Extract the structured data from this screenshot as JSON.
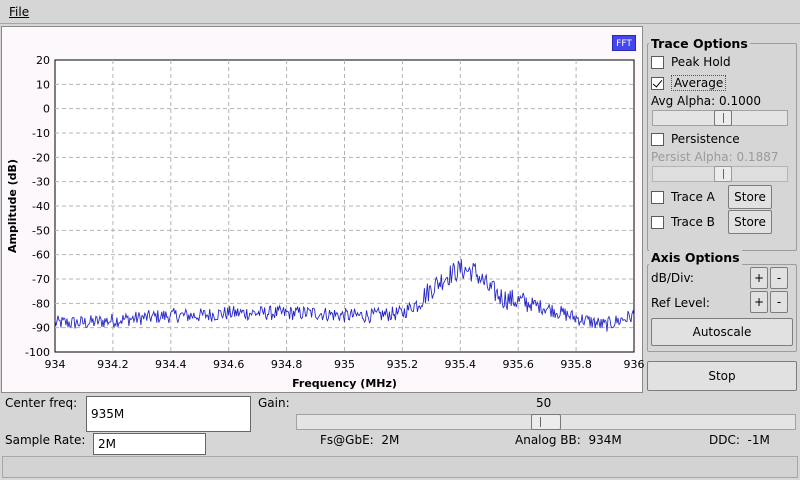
{
  "menu": {
    "file_label": "File"
  },
  "plot": {
    "badge": "FFT"
  },
  "chart_data": {
    "type": "line",
    "title": "",
    "xlabel": "Frequency (MHz)",
    "ylabel": "Amplitude (dB)",
    "xlim": [
      934,
      936
    ],
    "ylim": [
      -100,
      20
    ],
    "x_ticks": [
      "934",
      "934.2",
      "934.4",
      "934.6",
      "934.8",
      "935",
      "935.2",
      "935.4",
      "935.6",
      "935.8",
      "936"
    ],
    "y_ticks": [
      "20",
      "10",
      "0",
      "-10",
      "-20",
      "-30",
      "-40",
      "-50",
      "-60",
      "-70",
      "-80",
      "-90",
      "-100"
    ],
    "grid": true,
    "series_color": "#2727c8",
    "series": [
      {
        "x": [
          934.0,
          934.1,
          934.2,
          934.3,
          934.4,
          934.5,
          934.6,
          934.7,
          934.8,
          934.9,
          935.0,
          935.1,
          935.2,
          935.25,
          935.3,
          935.35,
          935.4,
          935.45,
          935.5,
          935.55,
          935.6,
          935.7,
          935.8,
          935.9,
          936.0
        ],
        "values": [
          -88,
          -88,
          -87,
          -86,
          -85,
          -85,
          -84,
          -84,
          -84,
          -84,
          -85,
          -85,
          -84,
          -80,
          -74,
          -69,
          -66,
          -67,
          -74,
          -78,
          -79,
          -82,
          -86,
          -89,
          -85
        ]
      }
    ]
  },
  "trace_options": {
    "title": "Trace Options",
    "peak_hold": {
      "label": "Peak Hold",
      "checked": false
    },
    "average": {
      "label": "Average",
      "checked": true
    },
    "avg_alpha_label": "Avg Alpha:",
    "avg_alpha_value": "0.1000",
    "avg_alpha_slider": 0.53,
    "persistence": {
      "label": "Persistence",
      "checked": false
    },
    "persist_alpha_label": "Persist Alpha:",
    "persist_alpha_value": "0.1887",
    "persist_alpha_slider": 0.53,
    "trace_a": {
      "label": "Trace A",
      "checked": false,
      "store_label": "Store"
    },
    "trace_b": {
      "label": "Trace B",
      "checked": false,
      "store_label": "Store"
    }
  },
  "axis_options": {
    "title": "Axis Options",
    "db_div_label": "dB/Div:",
    "ref_level_label": "Ref Level:",
    "plus": "+",
    "minus": "-",
    "autoscale_label": "Autoscale"
  },
  "stop_label": "Stop",
  "controls": {
    "center_freq_label": "Center freq:",
    "center_freq_value": "935M",
    "gain_label": "Gain:",
    "gain_value": "50",
    "gain_slider": 0.5,
    "sample_rate_label": "Sample Rate:",
    "sample_rate_value": "2M",
    "fs_gbe_label": "Fs@GbE:",
    "fs_gbe_value": "2M",
    "analog_bb_label": "Analog BB:",
    "analog_bb_value": "934M",
    "ddc_label": "DDC:",
    "ddc_value": "-1M"
  }
}
